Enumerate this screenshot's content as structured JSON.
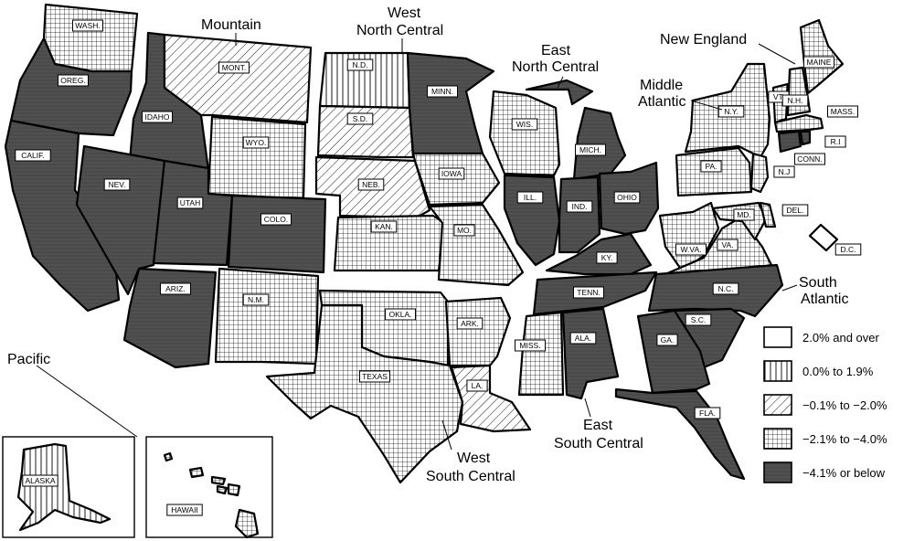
{
  "legend": [
    {
      "label": "2.0% and over",
      "pattern": "white"
    },
    {
      "label": "0.0% to 1.9%",
      "pattern": "vlines"
    },
    {
      "label": "−0.1% to −2.0%",
      "pattern": "diag"
    },
    {
      "label": "−2.1% to −4.0%",
      "pattern": "grid"
    },
    {
      "label": "−4.1% or below",
      "pattern": "dark"
    }
  ],
  "regions": {
    "pacific": "Pacific",
    "mountain": "Mountain",
    "wnc": [
      "West",
      "North Central"
    ],
    "enc": [
      "East",
      "North Central"
    ],
    "ne": "New England",
    "ma": [
      "Middle",
      "Atlantic"
    ],
    "sa": [
      "South",
      "Atlantic"
    ],
    "esc": [
      "East",
      "South Central"
    ],
    "wsc": [
      "West",
      "South Central"
    ]
  },
  "states": {
    "wa": "WASH.",
    "or": "OREG.",
    "ca": "CALIF.",
    "nv": "NEV.",
    "id": "IDAHO",
    "mt": "MONT.",
    "wy": "WYO.",
    "ut": "UTAH",
    "co": "COLO.",
    "az": "ARIZ.",
    "nm": "N.M.",
    "nd": "N.D.",
    "sd": "S.D.",
    "ne": "NEB.",
    "ks": "KAN.",
    "mn": "MINN.",
    "ia": "IOWA",
    "mo": "MO.",
    "ok": "OKLA.",
    "tx": "TEXAS",
    "ar": "ARK.",
    "la": "LA.",
    "wi": "WIS.",
    "mi": "MICH.",
    "il": "ILL.",
    "in": "IND.",
    "oh": "OHIO",
    "ky": "KY.",
    "tn": "TENN.",
    "ms": "MISS.",
    "al": "ALA.",
    "ny": "N.Y.",
    "pa": "PA.",
    "nj": "N.J",
    "me": "MAINE",
    "vt": "VT.",
    "nh": "N.H.",
    "ma": "MASS.",
    "ri": "R.I",
    "ct": "CONN.",
    "wv": "W.VA.",
    "va": "VA.",
    "md": "MD.",
    "de": "DEL.",
    "dc": "D.C.",
    "nc": "N.C.",
    "sc": "S.C.",
    "ga": "GA.",
    "fl": "FLA.",
    "ak": "ALASKA",
    "hi": "HAWAII"
  },
  "state_category": {
    "wa": "grid",
    "or": "dark",
    "ca": "dark",
    "nv": "dark",
    "id": "dark",
    "mt": "diag",
    "wy": "grid",
    "ut": "dark",
    "co": "dark",
    "az": "dark",
    "nm": "grid",
    "nd": "vlines",
    "sd": "diag",
    "ne": "diag",
    "ks": "grid",
    "mn": "dark",
    "ia": "grid",
    "mo": "grid",
    "ok": "grid",
    "tx": "grid",
    "ar": "grid",
    "la": "diag",
    "wi": "grid",
    "mi": "dark",
    "il": "dark",
    "in": "dark",
    "oh": "dark",
    "ky": "dark",
    "tn": "dark",
    "ms": "grid",
    "al": "dark",
    "ny": "grid",
    "pa": "grid",
    "nj": "grid",
    "me": "grid",
    "vt": "grid",
    "nh": "grid",
    "ma": "grid",
    "ri": "dark",
    "ct": "dark",
    "wv": "grid",
    "va": "grid",
    "md": "grid",
    "de": "grid",
    "dc": "white",
    "nc": "dark",
    "sc": "dark",
    "ga": "dark",
    "fl": "dark",
    "ak": "vlines",
    "hi": "grid"
  }
}
